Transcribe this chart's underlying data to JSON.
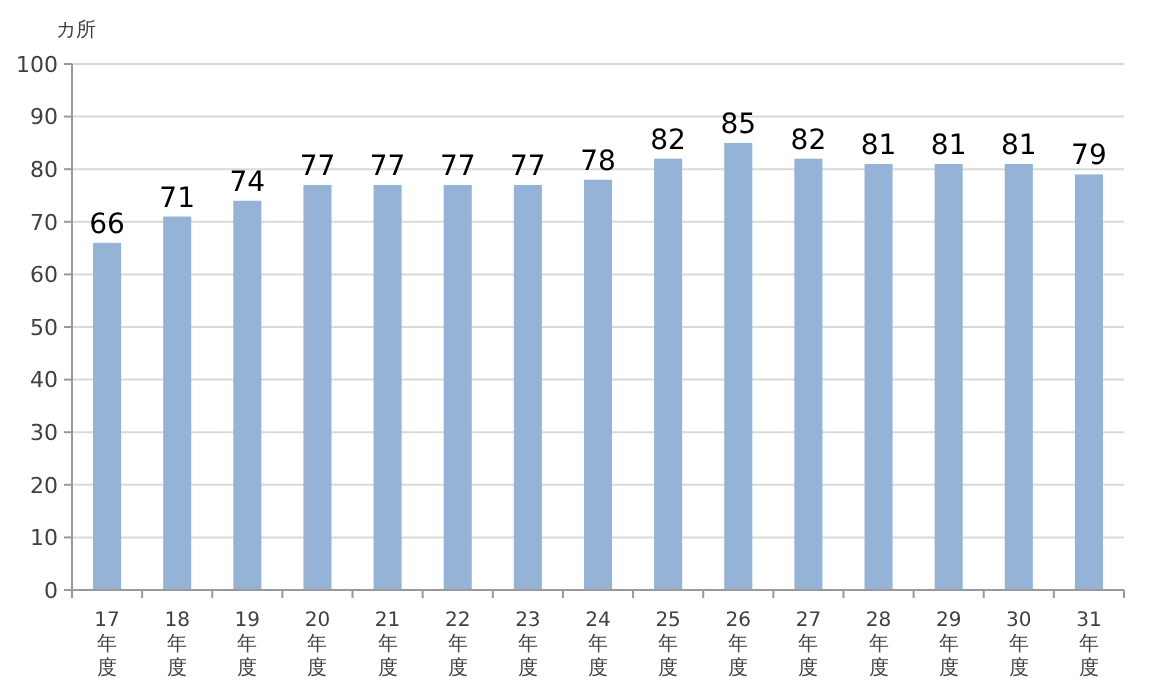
{
  "chart_data": {
    "type": "bar",
    "ylabel": "カ所",
    "categories": [
      "17年度",
      "18年度",
      "19年度",
      "20年度",
      "21年度",
      "22年度",
      "23年度",
      "24年度",
      "25年度",
      "26年度",
      "27年度",
      "28年度",
      "29年度",
      "30年度",
      "31年度"
    ],
    "values": [
      66,
      71,
      74,
      77,
      77,
      77,
      77,
      78,
      82,
      85,
      82,
      81,
      81,
      81,
      79
    ],
    "color": "#95b3d7",
    "ylim": [
      0,
      100
    ],
    "yticks": [
      0,
      10,
      20,
      30,
      40,
      50,
      60,
      70,
      80,
      90,
      100
    ],
    "grid": "y",
    "data_labels": true
  }
}
